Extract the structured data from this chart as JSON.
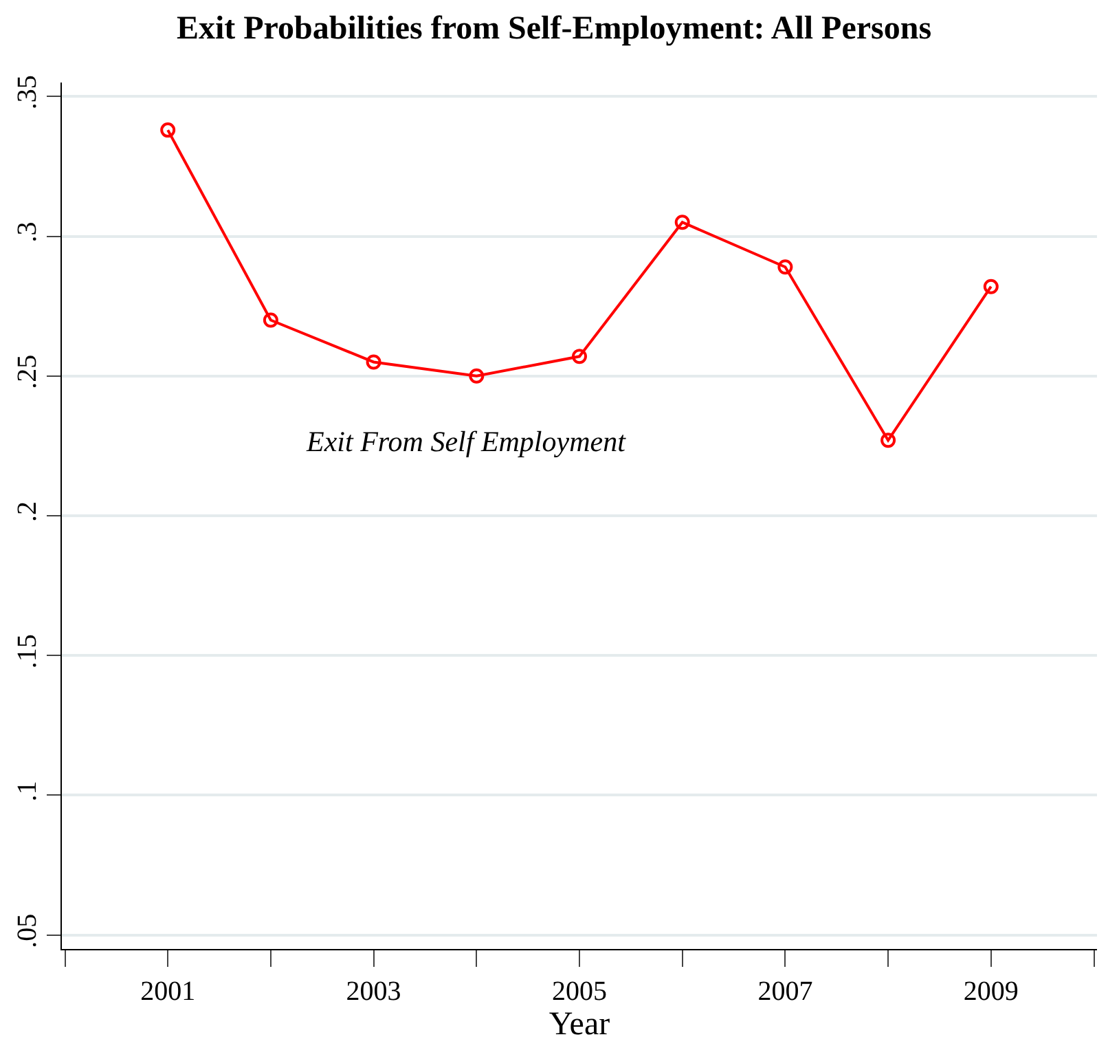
{
  "chart_data": {
    "type": "line",
    "title": "Exit Probabilities from Self-Employment: All Persons",
    "xlabel": "Year",
    "x": [
      2001,
      2002,
      2003,
      2004,
      2005,
      2006,
      2007,
      2008,
      2009
    ],
    "series": [
      {
        "name": "Exit From Self Employment",
        "color": "#ff0000",
        "values": [
          0.338,
          0.27,
          0.255,
          0.25,
          0.257,
          0.305,
          0.289,
          0.227,
          0.282
        ]
      }
    ],
    "xlim": [
      1999.97,
      2010.03
    ],
    "xticks": [
      {
        "value": 2000,
        "label": null
      },
      2001,
      {
        "value": 2002,
        "label": null
      },
      2003,
      {
        "value": 2004,
        "label": null
      },
      2005,
      {
        "value": 2006,
        "label": null
      },
      2007,
      {
        "value": 2008,
        "label": null
      },
      2009,
      {
        "value": 2010,
        "label": null
      }
    ],
    "ylim": [
      0.045,
      0.355
    ],
    "yticks": [
      {
        "value": 0.05,
        "label": ".05"
      },
      {
        "value": 0.1,
        "label": ".1"
      },
      {
        "value": 0.15,
        "label": ".15"
      },
      {
        "value": 0.2,
        "label": ".2"
      },
      {
        "value": 0.25,
        "label": ".25"
      },
      {
        "value": 0.3,
        "label": ".3"
      },
      {
        "value": 0.35,
        "label": ".35"
      }
    ],
    "grid": "y",
    "legend": false,
    "marker": "circle",
    "line_style": "solid"
  }
}
